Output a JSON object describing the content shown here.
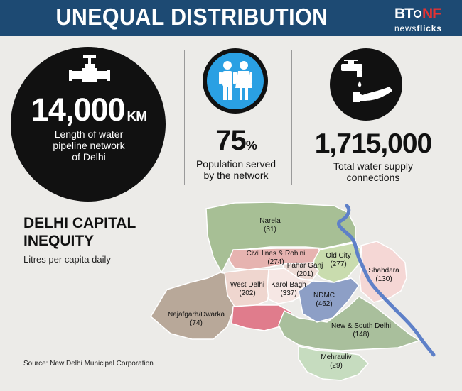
{
  "header": {
    "title": "UNEQUAL DISTRIBUTION",
    "logo_bt": "BT",
    "logo_nf": "NF",
    "logo_sub_news": "news",
    "logo_sub_flicks": "flicks"
  },
  "stats": {
    "pipeline": {
      "value": "14,000",
      "unit": "KM",
      "line1": "Length of water",
      "line2": "pipeline network",
      "line3": "of Delhi",
      "icon": "pipe-valve-icon"
    },
    "population": {
      "value": "75",
      "unit": "%",
      "line1": "Population served",
      "line2": "by the network",
      "icon": "people-icon"
    },
    "connections": {
      "value": "1,715,000",
      "line1": "Total water supply",
      "line2": "connections",
      "icon": "tap-hand-icon"
    }
  },
  "map_section": {
    "title_line1": "DELHI CAPITAL",
    "title_line2": "INEQUITY",
    "subtitle": "Litres per capita daily",
    "source": "Source: New Delhi Municipal Corporation"
  },
  "districts": [
    {
      "name": "Narela",
      "value": "(31)",
      "color": "#a7bf95"
    },
    {
      "name": "Civil lines & Rohini",
      "value": "(274)",
      "color": "#e6b3b0"
    },
    {
      "name": "Old City",
      "value": "(277)",
      "color": "#c9dcae"
    },
    {
      "name": "Pahar Ganj",
      "value": "(201)",
      "color": "#ecd9d3"
    },
    {
      "name": "Shahdara",
      "value": "(130)",
      "color": "#f5d7d5"
    },
    {
      "name": "West Delhi",
      "value": "(202)",
      "color": "#efd6cf"
    },
    {
      "name": "Karol Bagh",
      "value": "(337)",
      "color": "#f6e7e4"
    },
    {
      "name": "NDMC",
      "value": "(462)",
      "color": "#8d9fc6"
    },
    {
      "name": "Najafgarh/Dwarka",
      "value": "(74)",
      "color": "#b8a899"
    },
    {
      "name": "New & South Delhi",
      "value": "(148)",
      "color": "#a9bf9c"
    },
    {
      "name": "Mehrauliv",
      "value": "(29)",
      "color": "#c6dcbf"
    }
  ]
}
